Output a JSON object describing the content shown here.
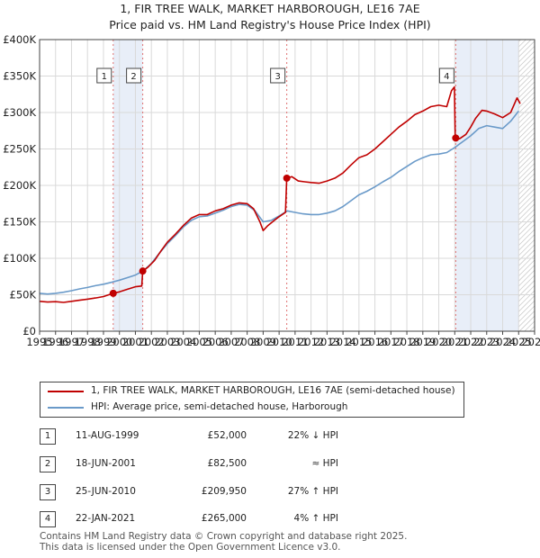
{
  "header": {
    "title_line1": "1, FIR TREE WALK, MARKET HARBOROUGH, LE16 7AE",
    "title_line2": "Price paid vs. HM Land Registry's House Price Index (HPI)"
  },
  "colors": {
    "property": "#c00000",
    "hpi": "#6a9ac9",
    "shade": "#e8eef8",
    "marker_line": "#e07070",
    "grid": "#d9d9d9",
    "future_hatch": "#bbbbbb"
  },
  "chart_data": {
    "type": "line",
    "title": "1, FIR TREE WALK, MARKET HARBOROUGH, LE16 7AE",
    "subtitle": "Price paid vs. HM Land Registry's House Price Index (HPI)",
    "xlim": [
      1995,
      2026
    ],
    "ylim": [
      0,
      400000
    ],
    "x_ticks": [
      "1995",
      "1996",
      "1997",
      "1998",
      "1999",
      "2000",
      "2001",
      "2002",
      "2003",
      "2004",
      "2005",
      "2006",
      "2007",
      "2008",
      "2009",
      "2010",
      "2011",
      "2012",
      "2013",
      "2014",
      "2015",
      "2016",
      "2017",
      "2018",
      "2019",
      "2020",
      "2021",
      "2022",
      "2023",
      "2024",
      "2025",
      "2026"
    ],
    "y_ticks": [
      {
        "value": 0,
        "label": "£0"
      },
      {
        "value": 50000,
        "label": "£50K"
      },
      {
        "value": 100000,
        "label": "£100K"
      },
      {
        "value": 150000,
        "label": "£150K"
      },
      {
        "value": 200000,
        "label": "£200K"
      },
      {
        "value": 250000,
        "label": "£250K"
      },
      {
        "value": 300000,
        "label": "£300K"
      },
      {
        "value": 350000,
        "label": "£350K"
      },
      {
        "value": 400000,
        "label": "£400K"
      }
    ],
    "grid": true,
    "future_from": 2025.0,
    "shaded_spans": [
      [
        1999.61,
        2001.46
      ],
      [
        2021.06,
        2025.0
      ]
    ],
    "series": [
      {
        "name": "1, FIR TREE WALK, MARKET HARBOROUGH, LE16 7AE (semi-detached house)",
        "color": "#c00000",
        "points": [
          [
            1995.0,
            41000
          ],
          [
            1995.5,
            40000
          ],
          [
            1996.0,
            40500
          ],
          [
            1996.5,
            39500
          ],
          [
            1997.0,
            41000
          ],
          [
            1997.5,
            42500
          ],
          [
            1998.0,
            44000
          ],
          [
            1998.5,
            45500
          ],
          [
            1999.0,
            47500
          ],
          [
            1999.61,
            52000
          ],
          [
            2000.0,
            54000
          ],
          [
            2000.5,
            57500
          ],
          [
            2001.0,
            61000
          ],
          [
            2001.4,
            62000
          ],
          [
            2001.46,
            82500
          ],
          [
            2001.8,
            88000
          ],
          [
            2002.2,
            97000
          ],
          [
            2002.6,
            110000
          ],
          [
            2003.0,
            122000
          ],
          [
            2003.5,
            133000
          ],
          [
            2004.0,
            145000
          ],
          [
            2004.5,
            155000
          ],
          [
            2005.0,
            160000
          ],
          [
            2005.5,
            160000
          ],
          [
            2006.0,
            165000
          ],
          [
            2006.5,
            168000
          ],
          [
            2007.0,
            173000
          ],
          [
            2007.5,
            176000
          ],
          [
            2008.0,
            175000
          ],
          [
            2008.4,
            168000
          ],
          [
            2008.8,
            150000
          ],
          [
            2009.0,
            138000
          ],
          [
            2009.3,
            145000
          ],
          [
            2009.7,
            152000
          ],
          [
            2010.0,
            157000
          ],
          [
            2010.4,
            163000
          ],
          [
            2010.48,
            209950
          ],
          [
            2010.8,
            212000
          ],
          [
            2011.2,
            206000
          ],
          [
            2011.6,
            205000
          ],
          [
            2012.0,
            204000
          ],
          [
            2012.5,
            203000
          ],
          [
            2013.0,
            206000
          ],
          [
            2013.5,
            210000
          ],
          [
            2014.0,
            217000
          ],
          [
            2014.5,
            228000
          ],
          [
            2015.0,
            238000
          ],
          [
            2015.5,
            242000
          ],
          [
            2016.0,
            250000
          ],
          [
            2016.5,
            260000
          ],
          [
            2017.0,
            270000
          ],
          [
            2017.5,
            280000
          ],
          [
            2018.0,
            288000
          ],
          [
            2018.5,
            297000
          ],
          [
            2019.0,
            302000
          ],
          [
            2019.5,
            308000
          ],
          [
            2020.0,
            310000
          ],
          [
            2020.5,
            308000
          ],
          [
            2020.8,
            330000
          ],
          [
            2020.98,
            335000
          ],
          [
            2021.03,
            265000
          ],
          [
            2021.3,
            264000
          ],
          [
            2021.7,
            270000
          ],
          [
            2022.0,
            280000
          ],
          [
            2022.3,
            292000
          ],
          [
            2022.7,
            303000
          ],
          [
            2023.0,
            302000
          ],
          [
            2023.5,
            298000
          ],
          [
            2024.0,
            293000
          ],
          [
            2024.5,
            300000
          ],
          [
            2024.9,
            320000
          ],
          [
            2025.1,
            312000
          ]
        ]
      },
      {
        "name": "HPI: Average price, semi-detached house, Harborough",
        "color": "#6a9ac9",
        "points": [
          [
            1995.0,
            52000
          ],
          [
            1995.5,
            51000
          ],
          [
            1996.0,
            52000
          ],
          [
            1996.5,
            53500
          ],
          [
            1997.0,
            55500
          ],
          [
            1997.5,
            58000
          ],
          [
            1998.0,
            60000
          ],
          [
            1998.5,
            62500
          ],
          [
            1999.0,
            64500
          ],
          [
            1999.5,
            67000
          ],
          [
            2000.0,
            70000
          ],
          [
            2000.5,
            73500
          ],
          [
            2001.0,
            77000
          ],
          [
            2001.5,
            83000
          ],
          [
            2002.0,
            93000
          ],
          [
            2002.5,
            107000
          ],
          [
            2003.0,
            120000
          ],
          [
            2003.5,
            131000
          ],
          [
            2004.0,
            143000
          ],
          [
            2004.5,
            152000
          ],
          [
            2005.0,
            157000
          ],
          [
            2005.5,
            158000
          ],
          [
            2006.0,
            162000
          ],
          [
            2006.5,
            166000
          ],
          [
            2007.0,
            171000
          ],
          [
            2007.5,
            174000
          ],
          [
            2008.0,
            173000
          ],
          [
            2008.5,
            165000
          ],
          [
            2009.0,
            150000
          ],
          [
            2009.5,
            152000
          ],
          [
            2010.0,
            158000
          ],
          [
            2010.5,
            165000
          ],
          [
            2011.0,
            163000
          ],
          [
            2011.5,
            161000
          ],
          [
            2012.0,
            160000
          ],
          [
            2012.5,
            160000
          ],
          [
            2013.0,
            162000
          ],
          [
            2013.5,
            165000
          ],
          [
            2014.0,
            171000
          ],
          [
            2014.5,
            179000
          ],
          [
            2015.0,
            187000
          ],
          [
            2015.5,
            192000
          ],
          [
            2016.0,
            198000
          ],
          [
            2016.5,
            205000
          ],
          [
            2017.0,
            211000
          ],
          [
            2017.5,
            219000
          ],
          [
            2018.0,
            226000
          ],
          [
            2018.5,
            233000
          ],
          [
            2019.0,
            238000
          ],
          [
            2019.5,
            242000
          ],
          [
            2020.0,
            243000
          ],
          [
            2020.5,
            245000
          ],
          [
            2021.0,
            252000
          ],
          [
            2021.5,
            260000
          ],
          [
            2022.0,
            268000
          ],
          [
            2022.5,
            278000
          ],
          [
            2023.0,
            282000
          ],
          [
            2023.5,
            280000
          ],
          [
            2024.0,
            278000
          ],
          [
            2024.5,
            288000
          ],
          [
            2025.0,
            302000
          ]
        ]
      }
    ],
    "markers": [
      {
        "label": "1",
        "x": 1999.61,
        "y": 52000
      },
      {
        "label": "2",
        "x": 2001.46,
        "y": 82500
      },
      {
        "label": "3",
        "x": 2010.48,
        "y": 209950
      },
      {
        "label": "4",
        "x": 2021.06,
        "y": 265000
      }
    ]
  },
  "legend": [
    {
      "label": "1, FIR TREE WALK, MARKET HARBOROUGH, LE16 7AE (semi-detached house)",
      "color": "#c00000"
    },
    {
      "label": "HPI: Average price, semi-detached house, Harborough",
      "color": "#6a9ac9"
    }
  ],
  "transactions": [
    {
      "num": "1",
      "date": "11-AUG-1999",
      "price": "£52,000",
      "relation": "22% ↓ HPI"
    },
    {
      "num": "2",
      "date": "18-JUN-2001",
      "price": "£82,500",
      "relation": "≈ HPI"
    },
    {
      "num": "3",
      "date": "25-JUN-2010",
      "price": "£209,950",
      "relation": "27% ↑ HPI"
    },
    {
      "num": "4",
      "date": "22-JAN-2021",
      "price": "£265,000",
      "relation": "4% ↑ HPI"
    }
  ],
  "footer": {
    "line1": "Contains HM Land Registry data © Crown copyright and database right 2025.",
    "line2": "This data is licensed under the Open Government Licence v3.0."
  }
}
